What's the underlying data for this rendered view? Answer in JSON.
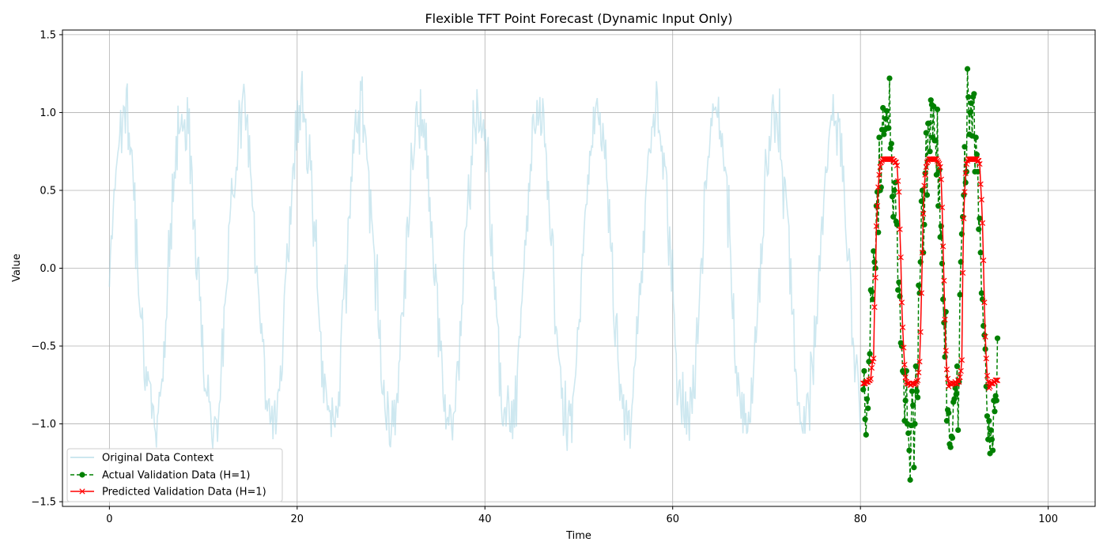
{
  "chart_data": {
    "type": "line",
    "title": "Flexible TFT Point Forecast (Dynamic Input Only)",
    "xlabel": "Time",
    "ylabel": "Value",
    "xlim": [
      -5,
      105
    ],
    "ylim": [
      -1.53,
      1.53
    ],
    "xticks": [
      0,
      20,
      40,
      60,
      80,
      100
    ],
    "yticks": [
      -1.5,
      -1.0,
      -0.5,
      0.0,
      0.5,
      1.0,
      1.5
    ],
    "ytick_labels": [
      "−1.5",
      "−1.0",
      "−0.5",
      "0.0",
      "0.5",
      "1.0",
      "1.5"
    ],
    "xtick_labels": [
      "0",
      "20",
      "40",
      "60",
      "80",
      "100"
    ],
    "grid": true,
    "legend_position": "lower-left",
    "series": [
      {
        "name": "Original Data Context",
        "color": "#add8e6",
        "style": "solid",
        "marker": "none",
        "generator": {
          "kind": "sine-noisy",
          "x_start": 0,
          "x_end": 80,
          "n": 800,
          "period": 6.3,
          "amplitude": 1.0,
          "noise": 0.12,
          "seed": 7
        }
      },
      {
        "name": "Actual Validation Data (H=1)",
        "color": "#008000",
        "style": "dashed",
        "marker": "circle",
        "x_start": 80.3,
        "x_step": 0.1,
        "values": [
          -0.78,
          -0.66,
          -0.97,
          -1.07,
          -0.84,
          -0.9,
          -0.6,
          -0.55,
          -0.14,
          -0.15,
          -0.2,
          0.11,
          0.04,
          0.0,
          0.4,
          0.49,
          0.23,
          0.84,
          0.5,
          0.52,
          0.89,
          1.03,
          0.86,
          0.89,
          0.96,
          1.01,
          0.9,
          0.9,
          1.22,
          0.77,
          0.8,
          0.46,
          0.33,
          0.5,
          0.55,
          0.3,
          0.28,
          -0.14,
          -0.09,
          -0.18,
          -0.48,
          -0.5,
          -0.66,
          -0.67,
          -0.98,
          -0.85,
          -0.66,
          -1.0,
          -1.06,
          -1.17,
          -1.36,
          -1.01,
          -0.79,
          -0.88,
          -1.28,
          -1.0,
          -0.63,
          -0.79,
          -0.83,
          -0.11,
          -0.16,
          0.04,
          0.43,
          0.5,
          0.1,
          0.28,
          0.61,
          0.87,
          0.47,
          0.93,
          0.93,
          0.75,
          1.08,
          1.05,
          0.84,
          1.04,
          0.82,
          0.82,
          0.6,
          1.02,
          0.4,
          0.63,
          0.2,
          0.27,
          0.03,
          -0.2,
          -0.35,
          -0.57,
          -0.28,
          -0.98,
          -0.91,
          -0.93,
          -1.13,
          -1.15,
          -1.08,
          -1.09,
          -0.86,
          -0.84,
          -0.77,
          -0.81,
          -0.63,
          -1.04,
          -0.73,
          -0.17,
          0.04,
          0.22,
          0.33,
          0.47,
          0.78,
          0.55,
          0.62,
          1.28,
          1.1,
          0.86,
          1.0,
          1.06,
          0.85,
          1.1,
          1.12,
          0.62,
          0.84,
          0.73,
          0.62,
          0.25,
          0.32,
          0.1,
          -0.16,
          -0.2,
          -0.37,
          -0.43,
          -0.52,
          -0.76,
          -0.95,
          -1.1,
          -0.98,
          -1.19,
          -1.04,
          -1.1,
          -1.17,
          -0.85,
          -0.92,
          -0.82,
          -0.85,
          -0.45
        ]
      },
      {
        "name": "Predicted Validation Data (H=1)",
        "color": "#ff0000",
        "style": "solid",
        "marker": "x",
        "x_start": 80.3,
        "x_step": 0.1,
        "values": [
          -0.74,
          -0.74,
          -0.74,
          -0.73,
          -0.73,
          -0.73,
          -0.72,
          -0.72,
          -0.71,
          -0.64,
          -0.6,
          -0.58,
          -0.25,
          -0.06,
          0.27,
          0.4,
          0.52,
          0.6,
          0.65,
          0.68,
          0.69,
          0.7,
          0.7,
          0.7,
          0.7,
          0.7,
          0.7,
          0.7,
          0.7,
          0.7,
          0.7,
          0.7,
          0.69,
          0.69,
          0.68,
          0.68,
          0.66,
          0.56,
          0.49,
          0.25,
          0.07,
          -0.22,
          -0.38,
          -0.51,
          -0.62,
          -0.7,
          -0.73,
          -0.74,
          -0.74,
          -0.74,
          -0.75,
          -0.75,
          -0.74,
          -0.74,
          -0.74,
          -0.75,
          -0.74,
          -0.73,
          -0.72,
          -0.67,
          -0.6,
          -0.41,
          -0.16,
          0.1,
          0.35,
          0.53,
          0.6,
          0.65,
          0.68,
          0.69,
          0.7,
          0.7,
          0.7,
          0.7,
          0.7,
          0.7,
          0.7,
          0.7,
          0.7,
          0.69,
          0.68,
          0.67,
          0.65,
          0.57,
          0.39,
          0.14,
          -0.08,
          -0.33,
          -0.53,
          -0.65,
          -0.71,
          -0.76,
          -0.74,
          -0.74,
          -0.75,
          -0.74,
          -0.74,
          -0.74,
          -0.73,
          -0.74,
          -0.74,
          -0.72,
          -0.73,
          -0.7,
          -0.66,
          -0.59,
          -0.03,
          0.32,
          0.49,
          0.61,
          0.67,
          0.69,
          0.7,
          0.7,
          0.7,
          0.7,
          0.7,
          0.7,
          0.7,
          0.7,
          0.7,
          0.7,
          0.69,
          0.69,
          0.67,
          0.54,
          0.44,
          0.29,
          0.05,
          -0.22,
          -0.44,
          -0.58,
          -0.69,
          -0.73,
          -0.77,
          -0.76,
          -0.74,
          -0.74,
          -0.74,
          -0.73,
          -0.73,
          -0.72,
          -0.72,
          -0.72
        ]
      }
    ]
  }
}
